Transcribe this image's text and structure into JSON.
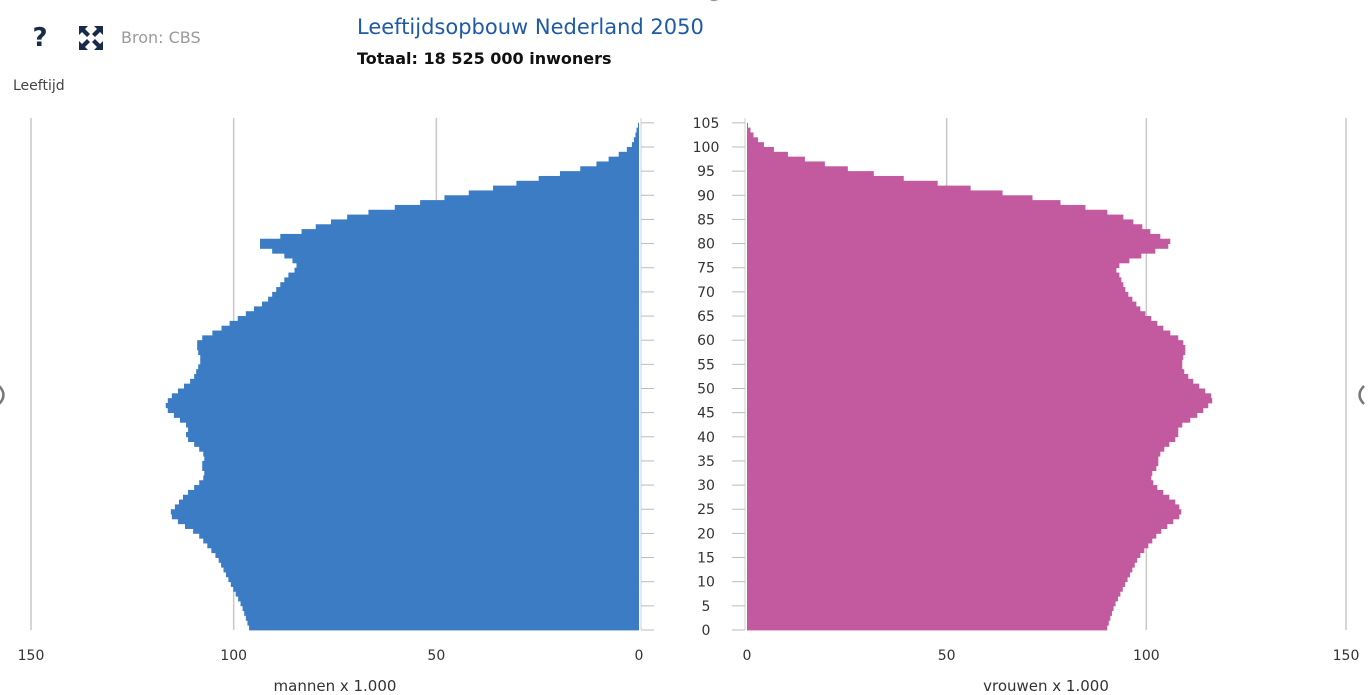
{
  "toolbar": {
    "help_icon": "question-mark-icon",
    "help_label": "?",
    "expand_icon": "expand-arrows-icon",
    "source": "Bron: CBS"
  },
  "colors": {
    "men": "#3b7cc4",
    "women": "#c3599e",
    "title": "#1f5aa6",
    "grid": "#c8c8c8"
  },
  "chart_data": {
    "type": "bar",
    "subtype": "population-pyramid",
    "title": "Leeftijdsopbouw Nederland 2050",
    "subtitle": "Totaal: 18 525 000 inwoners",
    "ylabel": "Leeftijd",
    "age_ticks": [
      0,
      5,
      10,
      15,
      20,
      25,
      30,
      35,
      40,
      45,
      50,
      55,
      60,
      65,
      70,
      75,
      80,
      85,
      90,
      95,
      100,
      105
    ],
    "ylim": [
      0,
      105
    ],
    "grid": true,
    "left_axis": {
      "xlabel": "mannen x 1.000",
      "ticks": [
        150,
        100,
        50,
        0
      ],
      "xlim": [
        0,
        150
      ]
    },
    "right_axis": {
      "xlabel": "vrouwen x 1.000",
      "ticks": [
        0,
        50,
        100,
        150
      ],
      "xlim": [
        0,
        150
      ]
    },
    "series": [
      {
        "name": "mannen",
        "side": "left",
        "profile": [
          [
            0,
            96
          ],
          [
            5,
            98
          ],
          [
            10,
            101
          ],
          [
            15,
            104
          ],
          [
            20,
            109
          ],
          [
            22,
            113
          ],
          [
            24,
            116
          ],
          [
            26,
            114
          ],
          [
            28,
            112
          ],
          [
            30,
            109
          ],
          [
            32,
            107
          ],
          [
            34,
            108
          ],
          [
            36,
            107
          ],
          [
            38,
            109
          ],
          [
            40,
            112
          ],
          [
            42,
            111
          ],
          [
            44,
            114
          ],
          [
            46,
            117
          ],
          [
            48,
            116
          ],
          [
            50,
            113
          ],
          [
            52,
            110
          ],
          [
            54,
            109
          ],
          [
            56,
            108
          ],
          [
            58,
            109
          ],
          [
            60,
            109
          ],
          [
            62,
            104
          ],
          [
            64,
            100
          ],
          [
            66,
            96
          ],
          [
            68,
            92
          ],
          [
            70,
            90
          ],
          [
            72,
            88
          ],
          [
            74,
            86
          ],
          [
            75,
            84
          ],
          [
            77,
            86
          ],
          [
            79,
            92
          ],
          [
            80,
            95
          ],
          [
            81,
            92
          ],
          [
            82,
            85
          ],
          [
            84,
            78
          ],
          [
            86,
            70
          ],
          [
            88,
            57
          ],
          [
            90,
            45
          ],
          [
            92,
            33
          ],
          [
            94,
            22
          ],
          [
            96,
            12
          ],
          [
            98,
            6
          ],
          [
            100,
            2
          ],
          [
            102,
            1
          ],
          [
            104,
            0.5
          ],
          [
            105,
            0
          ]
        ]
      },
      {
        "name": "vrouwen",
        "side": "right",
        "profile": [
          [
            0,
            90
          ],
          [
            5,
            92
          ],
          [
            10,
            95
          ],
          [
            15,
            98
          ],
          [
            20,
            103
          ],
          [
            22,
            106
          ],
          [
            24,
            109
          ],
          [
            26,
            108
          ],
          [
            28,
            105
          ],
          [
            30,
            102
          ],
          [
            32,
            101
          ],
          [
            34,
            103
          ],
          [
            36,
            103
          ],
          [
            38,
            105
          ],
          [
            40,
            108
          ],
          [
            42,
            108
          ],
          [
            44,
            112
          ],
          [
            46,
            115
          ],
          [
            48,
            117
          ],
          [
            50,
            114
          ],
          [
            52,
            111
          ],
          [
            54,
            109
          ],
          [
            56,
            109
          ],
          [
            58,
            110
          ],
          [
            60,
            109
          ],
          [
            62,
            105
          ],
          [
            64,
            102
          ],
          [
            66,
            99
          ],
          [
            68,
            97
          ],
          [
            70,
            95
          ],
          [
            72,
            94
          ],
          [
            74,
            93
          ],
          [
            75,
            92
          ],
          [
            77,
            97
          ],
          [
            79,
            104
          ],
          [
            80,
            107
          ],
          [
            81,
            105
          ],
          [
            82,
            102
          ],
          [
            84,
            98
          ],
          [
            86,
            93
          ],
          [
            88,
            82
          ],
          [
            90,
            68
          ],
          [
            92,
            52
          ],
          [
            94,
            35
          ],
          [
            96,
            22
          ],
          [
            98,
            12
          ],
          [
            100,
            5
          ],
          [
            102,
            2
          ],
          [
            104,
            0.5
          ],
          [
            105,
            0
          ]
        ]
      }
    ]
  }
}
